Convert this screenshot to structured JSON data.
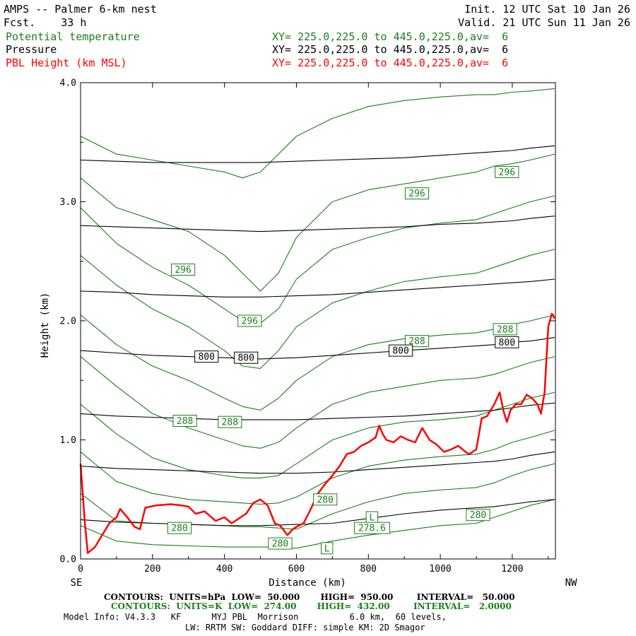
{
  "header": {
    "title": "AMPS -- Palmer 6-km nest",
    "forecast": "Fcst.    33 h",
    "init": "Init. 12 UTC Sat 10 Jan 26",
    "valid": "Valid. 21 UTC Sun 11 Jan 26"
  },
  "fields": [
    {
      "name": "Potential temperature",
      "xsec": "XY= 225.0,225.0 to 445.0,225.0,av=  6",
      "color": "#1a7f1a"
    },
    {
      "name": "Pressure",
      "xsec": "XY= 225.0,225.0 to 445.0,225.0,av=  6",
      "color": "#000000"
    },
    {
      "name": "PBL Height (km MSL)",
      "xsec": "XY= 225.0,225.0 to 445.0,225.0,av=  6",
      "color": "#ff0000"
    }
  ],
  "footer": {
    "contours_pressure": "CONTOURS:  UNITS=hPa  LOW=  50.000       HIGH=  950.00        INTERVAL=   50.000",
    "contours_theta": "CONTOURS:  UNITS=K  LOW=  274.00       HIGH=  432.00        INTERVAL=   2.0000",
    "model_info": "Model Info: V4.3.3   KF      MYJ PBL  Morrison          6.0 km,  60 levels,",
    "physics": "LW: RRTM SW: Goddard DIFF: simple KM: 2D Smagor"
  },
  "colors": {
    "theta": "#1a7f1a",
    "pressure": "#000000",
    "pbl": "#ff0000"
  },
  "chart_data": {
    "type": "line",
    "title": "AMPS -- Palmer 6-km nest",
    "xlabel": "Distance (km)",
    "ylabel": "Height (km)",
    "xlim": [
      0,
      1320
    ],
    "ylim": [
      0,
      4.0
    ],
    "xticks": [
      0,
      200,
      400,
      600,
      800,
      1000,
      1200
    ],
    "yticks": [
      0.0,
      1.0,
      2.0,
      3.0,
      4.0
    ],
    "xtick_labels": [
      "0",
      "200",
      "400",
      "600",
      "800",
      "1000",
      "1200"
    ],
    "ytick_labels": [
      "0.0",
      "1.0",
      "2.0",
      "3.0",
      "4.0"
    ],
    "x_end_labels": {
      "left": "SE",
      "right": "NW"
    },
    "series": [
      {
        "name": "PBL Height (km MSL)",
        "field": "pbl",
        "x": [
          0,
          12,
          20,
          40,
          60,
          80,
          100,
          110,
          130,
          150,
          165,
          180,
          210,
          250,
          280,
          300,
          320,
          345,
          375,
          400,
          420,
          460,
          480,
          500,
          520,
          540,
          555,
          575,
          590,
          600,
          620,
          640,
          660,
          680,
          700,
          720,
          740,
          760,
          780,
          800,
          820,
          830,
          840,
          850,
          870,
          890,
          910,
          930,
          950,
          970,
          990,
          1010,
          1030,
          1050,
          1070,
          1080,
          1100,
          1115,
          1130,
          1150,
          1165,
          1175,
          1185,
          1195,
          1210,
          1225,
          1240,
          1255,
          1270,
          1280,
          1290,
          1300,
          1310,
          1318
        ],
        "y": [
          0.8,
          0.3,
          0.05,
          0.1,
          0.2,
          0.3,
          0.35,
          0.42,
          0.35,
          0.27,
          0.25,
          0.43,
          0.45,
          0.46,
          0.45,
          0.44,
          0.38,
          0.4,
          0.32,
          0.35,
          0.3,
          0.38,
          0.47,
          0.5,
          0.45,
          0.3,
          0.28,
          0.2,
          0.25,
          0.27,
          0.3,
          0.42,
          0.55,
          0.63,
          0.7,
          0.78,
          0.88,
          0.9,
          0.95,
          0.98,
          1.02,
          1.12,
          1.05,
          1.0,
          0.98,
          1.03,
          1.0,
          0.98,
          1.1,
          1.0,
          0.96,
          0.9,
          0.92,
          0.95,
          0.9,
          0.88,
          0.92,
          1.18,
          1.2,
          1.3,
          1.4,
          1.25,
          1.15,
          1.25,
          1.3,
          1.3,
          1.38,
          1.35,
          1.3,
          1.22,
          1.4,
          1.95,
          2.06,
          2.02
        ]
      },
      {
        "name": "800 hPa isobar",
        "field": "pressure",
        "x": [
          0,
          100,
          200,
          300,
          400,
          500,
          600,
          700,
          800,
          900,
          1000,
          1100,
          1150,
          1200,
          1250,
          1318
        ],
        "y": [
          1.75,
          1.73,
          1.71,
          1.7,
          1.69,
          1.68,
          1.69,
          1.71,
          1.73,
          1.75,
          1.77,
          1.79,
          1.8,
          1.82,
          1.83,
          1.86
        ]
      },
      {
        "name": "850 hPa isobar",
        "field": "pressure",
        "x": [
          0,
          100,
          200,
          300,
          400,
          500,
          600,
          700,
          800,
          900,
          1000,
          1100,
          1150,
          1200,
          1250,
          1318
        ],
        "y": [
          1.22,
          1.2,
          1.19,
          1.18,
          1.17,
          1.17,
          1.17,
          1.18,
          1.19,
          1.2,
          1.22,
          1.24,
          1.25,
          1.27,
          1.29,
          1.31
        ]
      },
      {
        "name": "900 hPa isobar",
        "field": "pressure",
        "x": [
          0,
          100,
          200,
          300,
          400,
          500,
          600,
          700,
          800,
          900,
          1000,
          1100,
          1150,
          1200,
          1250,
          1318
        ],
        "y": [
          0.78,
          0.76,
          0.75,
          0.74,
          0.73,
          0.72,
          0.72,
          0.73,
          0.75,
          0.77,
          0.79,
          0.81,
          0.82,
          0.84,
          0.87,
          0.9
        ]
      },
      {
        "name": "950 hPa isobar",
        "field": "pressure",
        "x": [
          0,
          100,
          200,
          300,
          400,
          500,
          600,
          700,
          800,
          900,
          1000,
          1100,
          1150,
          1200,
          1250,
          1318
        ],
        "y": [
          0.33,
          0.31,
          0.3,
          0.29,
          0.28,
          0.28,
          0.29,
          0.3,
          0.34,
          0.38,
          0.41,
          0.43,
          0.44,
          0.46,
          0.48,
          0.5
        ]
      },
      {
        "name": "750 hPa isobar",
        "field": "pressure",
        "x": [
          0,
          100,
          200,
          300,
          400,
          500,
          600,
          700,
          800,
          900,
          1000,
          1100,
          1150,
          1200,
          1250,
          1318
        ],
        "y": [
          2.25,
          2.24,
          2.22,
          2.21,
          2.2,
          2.2,
          2.21,
          2.22,
          2.24,
          2.26,
          2.28,
          2.3,
          2.31,
          2.32,
          2.33,
          2.35
        ]
      },
      {
        "name": "700 hPa isobar",
        "field": "pressure",
        "x": [
          0,
          100,
          200,
          300,
          400,
          500,
          600,
          700,
          800,
          900,
          1000,
          1100,
          1150,
          1200,
          1250,
          1318
        ],
        "y": [
          2.8,
          2.79,
          2.78,
          2.77,
          2.76,
          2.75,
          2.76,
          2.77,
          2.78,
          2.79,
          2.81,
          2.82,
          2.83,
          2.84,
          2.86,
          2.88
        ]
      },
      {
        "name": "650 hPa isobar",
        "field": "pressure",
        "x": [
          0,
          100,
          200,
          300,
          400,
          500,
          600,
          700,
          800,
          900,
          1000,
          1100,
          1150,
          1200,
          1250,
          1318
        ],
        "y": [
          3.35,
          3.34,
          3.33,
          3.33,
          3.33,
          3.33,
          3.34,
          3.35,
          3.36,
          3.37,
          3.39,
          3.41,
          3.42,
          3.43,
          3.45,
          3.47
        ]
      },
      {
        "name": "theta contour a",
        "field": "theta",
        "x": [
          0,
          100,
          200,
          300,
          400,
          450,
          500,
          550,
          600,
          700,
          800,
          900,
          1000,
          1100,
          1150,
          1200,
          1250,
          1318
        ],
        "y": [
          3.55,
          3.4,
          3.35,
          3.3,
          3.25,
          3.2,
          3.25,
          3.4,
          3.55,
          3.7,
          3.8,
          3.85,
          3.88,
          3.9,
          3.9,
          3.92,
          3.93,
          3.95
        ]
      },
      {
        "name": "theta contour b",
        "field": "theta",
        "x": [
          0,
          100,
          200,
          300,
          400,
          450,
          500,
          550,
          600,
          700,
          800,
          900,
          1000,
          1100,
          1150,
          1200,
          1250,
          1318
        ],
        "y": [
          3.2,
          2.95,
          2.85,
          2.75,
          2.55,
          2.4,
          2.25,
          2.4,
          2.7,
          3.0,
          3.1,
          3.15,
          3.2,
          3.25,
          3.3,
          3.32,
          3.35,
          3.4
        ]
      },
      {
        "name": "theta contour c",
        "field": "theta",
        "x": [
          0,
          100,
          200,
          300,
          400,
          450,
          500,
          550,
          600,
          700,
          800,
          900,
          1000,
          1100,
          1150,
          1200,
          1250,
          1318
        ],
        "y": [
          2.95,
          2.65,
          2.45,
          2.3,
          2.1,
          2.0,
          1.98,
          2.1,
          2.35,
          2.6,
          2.7,
          2.78,
          2.82,
          2.85,
          2.9,
          2.95,
          3.0,
          3.05
        ]
      },
      {
        "name": "theta contour d",
        "field": "theta",
        "x": [
          0,
          100,
          200,
          300,
          400,
          450,
          500,
          550,
          600,
          700,
          800,
          900,
          1000,
          1100,
          1150,
          1200,
          1250,
          1318
        ],
        "y": [
          2.55,
          2.3,
          2.1,
          1.95,
          1.75,
          1.62,
          1.6,
          1.75,
          1.95,
          2.15,
          2.25,
          2.33,
          2.37,
          2.4,
          2.45,
          2.5,
          2.55,
          2.6
        ]
      },
      {
        "name": "theta contour e",
        "field": "theta",
        "x": [
          0,
          100,
          200,
          300,
          400,
          450,
          500,
          550,
          600,
          700,
          800,
          900,
          1000,
          1100,
          1150,
          1200,
          1250,
          1318
        ],
        "y": [
          2.05,
          1.8,
          1.62,
          1.5,
          1.35,
          1.28,
          1.25,
          1.35,
          1.5,
          1.7,
          1.8,
          1.85,
          1.88,
          1.9,
          1.93,
          1.97,
          2.0,
          2.05
        ]
      },
      {
        "name": "theta contour f",
        "field": "theta",
        "x": [
          0,
          100,
          200,
          300,
          400,
          450,
          500,
          550,
          600,
          700,
          800,
          900,
          1000,
          1100,
          1150,
          1200,
          1250,
          1318
        ],
        "y": [
          1.7,
          1.45,
          1.22,
          1.1,
          1.0,
          0.95,
          0.93,
          0.98,
          1.1,
          1.3,
          1.4,
          1.45,
          1.5,
          1.52,
          1.55,
          1.6,
          1.65,
          1.7
        ]
      },
      {
        "name": "theta contour g",
        "field": "theta",
        "x": [
          0,
          100,
          200,
          300,
          400,
          450,
          500,
          550,
          600,
          700,
          800,
          900,
          1000,
          1100,
          1150,
          1200,
          1250,
          1318
        ],
        "y": [
          1.3,
          1.05,
          0.85,
          0.75,
          0.7,
          0.68,
          0.68,
          0.7,
          0.8,
          1.0,
          1.1,
          1.15,
          1.17,
          1.2,
          1.25,
          1.3,
          1.35,
          1.4
        ]
      },
      {
        "name": "theta contour h",
        "field": "theta",
        "x": [
          0,
          100,
          200,
          300,
          400,
          450,
          500,
          550,
          600,
          700,
          800,
          900,
          1000,
          1100,
          1150,
          1200,
          1250,
          1318
        ],
        "y": [
          0.9,
          0.65,
          0.55,
          0.5,
          0.48,
          0.47,
          0.46,
          0.47,
          0.52,
          0.68,
          0.78,
          0.83,
          0.86,
          0.88,
          0.92,
          0.98,
          1.02,
          1.08
        ]
      },
      {
        "name": "theta contour i",
        "field": "theta",
        "x": [
          0,
          100,
          200,
          300,
          400,
          450,
          500,
          550,
          600,
          700,
          800,
          900,
          1000,
          1100,
          1150,
          1200,
          1250,
          1318
        ],
        "y": [
          0.55,
          0.32,
          0.3,
          0.29,
          0.28,
          0.27,
          0.27,
          0.26,
          0.25,
          0.38,
          0.48,
          0.55,
          0.58,
          0.6,
          0.64,
          0.7,
          0.75,
          0.8
        ]
      },
      {
        "name": "theta contour j",
        "field": "theta",
        "x": [
          0,
          100,
          200,
          300,
          400,
          450,
          500,
          550,
          600,
          700,
          800,
          900,
          1000,
          1100,
          1150,
          1200,
          1250,
          1318
        ],
        "y": [
          0.28,
          0.15,
          0.12,
          0.11,
          0.1,
          0.1,
          0.1,
          0.1,
          0.09,
          0.15,
          0.2,
          0.24,
          0.28,
          0.3,
          0.35,
          0.4,
          0.45,
          0.5
        ]
      }
    ],
    "contour_labels": [
      {
        "text": "296",
        "x": 285,
        "y": 2.43,
        "field": "theta"
      },
      {
        "text": "296",
        "x": 470,
        "y": 2.0,
        "field": "theta"
      },
      {
        "text": "296",
        "x": 935,
        "y": 3.07,
        "field": "theta"
      },
      {
        "text": "296",
        "x": 1185,
        "y": 3.25,
        "field": "theta"
      },
      {
        "text": "288",
        "x": 290,
        "y": 1.16,
        "field": "theta"
      },
      {
        "text": "288",
        "x": 415,
        "y": 1.15,
        "field": "theta"
      },
      {
        "text": "288",
        "x": 935,
        "y": 1.83,
        "field": "theta"
      },
      {
        "text": "288",
        "x": 1180,
        "y": 1.93,
        "field": "theta"
      },
      {
        "text": "280",
        "x": 275,
        "y": 0.26,
        "field": "theta"
      },
      {
        "text": "280",
        "x": 555,
        "y": 0.13,
        "field": "theta"
      },
      {
        "text": "280",
        "x": 680,
        "y": 0.5,
        "field": "theta"
      },
      {
        "text": "280",
        "x": 1105,
        "y": 0.37,
        "field": "theta"
      },
      {
        "text": "800",
        "x": 350,
        "y": 1.7,
        "field": "pressure"
      },
      {
        "text": "800",
        "x": 460,
        "y": 1.69,
        "field": "pressure"
      },
      {
        "text": "800",
        "x": 890,
        "y": 1.75,
        "field": "pressure"
      },
      {
        "text": "800",
        "x": 1185,
        "y": 1.82,
        "field": "pressure"
      },
      {
        "text": "L",
        "x": 810,
        "y": 0.35,
        "field": "theta"
      },
      {
        "text": "278.6",
        "x": 810,
        "y": 0.26,
        "field": "theta"
      },
      {
        "text": "L",
        "x": 685,
        "y": 0.09,
        "field": "theta"
      }
    ]
  }
}
